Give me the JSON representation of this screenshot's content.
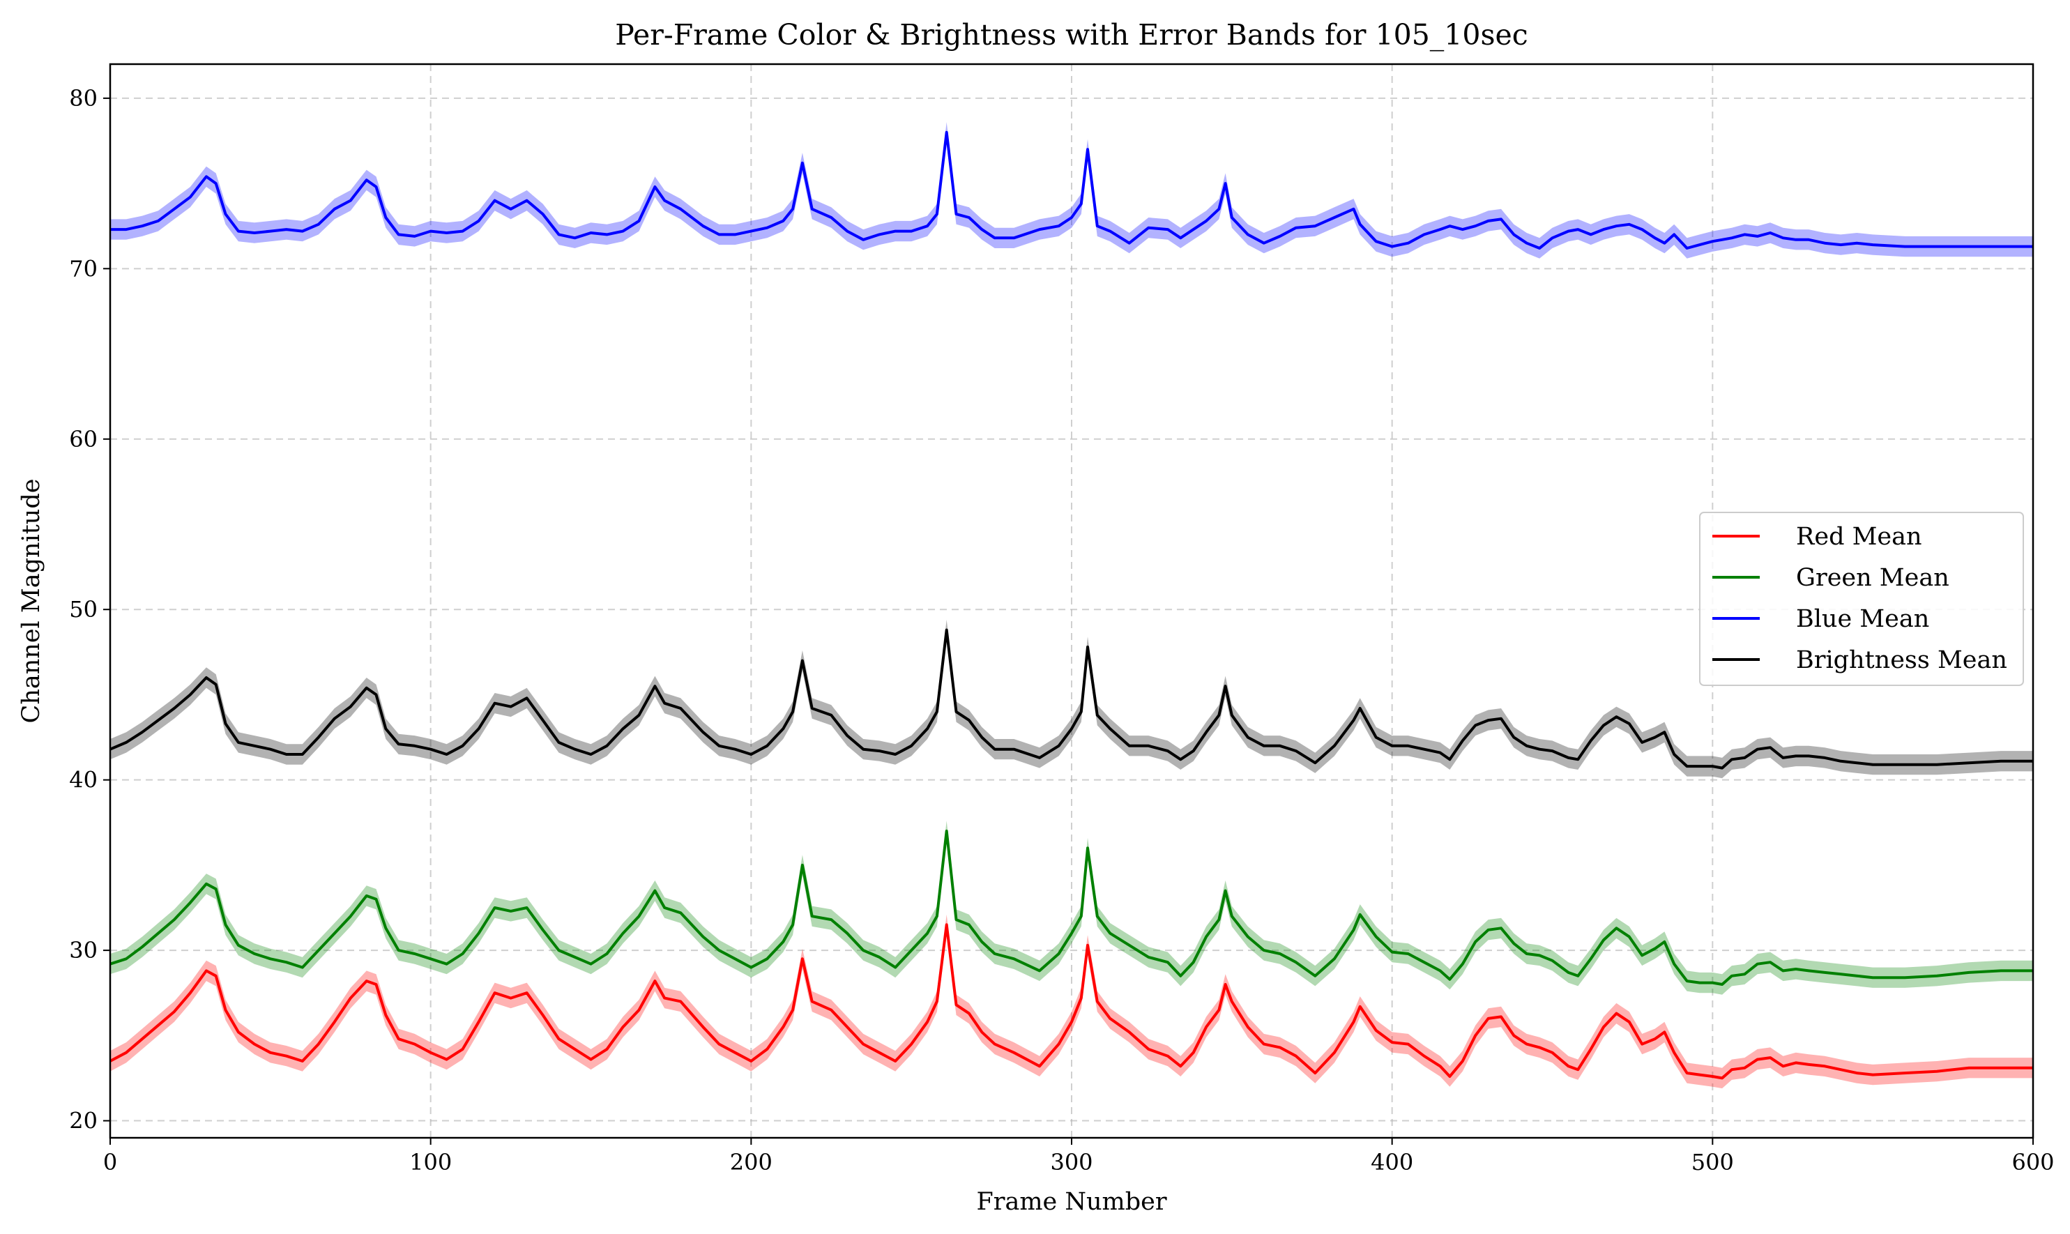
{
  "chart_data": {
    "type": "line",
    "title": "Per-Frame Color & Brightness with Error Bands for 105_10sec",
    "xlabel": "Frame Number",
    "ylabel": "Channel Magnitude",
    "xlim": [
      0,
      600
    ],
    "ylim": [
      19,
      82
    ],
    "xticks": [
      0,
      100,
      200,
      300,
      400,
      500,
      600
    ],
    "yticks": [
      20,
      30,
      40,
      50,
      60,
      70,
      80
    ],
    "grid": true,
    "legend_position": "center-right",
    "band_halfwidth": 0.6,
    "series": [
      {
        "name": "Red Mean",
        "color": "#ff0000",
        "x": [
          0,
          5,
          10,
          15,
          20,
          25,
          30,
          33,
          36,
          40,
          45,
          50,
          55,
          60,
          65,
          70,
          75,
          80,
          83,
          86,
          90,
          95,
          100,
          105,
          110,
          115,
          120,
          125,
          130,
          135,
          140,
          145,
          150,
          155,
          160,
          165,
          170,
          173,
          178,
          185,
          190,
          195,
          200,
          205,
          210,
          213,
          216,
          219,
          225,
          230,
          235,
          240,
          245,
          250,
          255,
          258,
          261,
          264,
          268,
          272,
          276,
          282,
          290,
          296,
          300,
          303,
          305,
          308,
          312,
          318,
          324,
          330,
          334,
          338,
          342,
          346,
          348,
          350,
          355,
          360,
          365,
          370,
          376,
          382,
          388,
          390,
          395,
          400,
          405,
          410,
          415,
          418,
          422,
          426,
          430,
          434,
          438,
          442,
          446,
          450,
          455,
          458,
          462,
          466,
          470,
          474,
          478,
          482,
          485,
          488,
          492,
          496,
          500,
          503,
          506,
          510,
          514,
          518,
          522,
          526,
          530,
          535,
          540,
          545,
          550,
          560,
          570,
          580,
          590,
          600
        ],
        "y": [
          23.5,
          24,
          24.8,
          25.6,
          26.4,
          27.5,
          28.8,
          28.5,
          26.5,
          25.2,
          24.5,
          24,
          23.8,
          23.5,
          24.5,
          25.8,
          27.2,
          28.2,
          28,
          26.2,
          24.8,
          24.5,
          24,
          23.6,
          24.2,
          25.8,
          27.5,
          27.2,
          27.5,
          26.2,
          24.8,
          24.2,
          23.6,
          24.2,
          25.5,
          26.5,
          28.2,
          27.2,
          27,
          25.5,
          24.5,
          24,
          23.5,
          24.2,
          25.5,
          26.5,
          29.5,
          27,
          26.5,
          25.5,
          24.5,
          24,
          23.5,
          24.5,
          25.8,
          27,
          31.5,
          26.8,
          26.3,
          25.2,
          24.5,
          24,
          23.2,
          24.5,
          25.8,
          27.2,
          30.3,
          27,
          26,
          25.2,
          24.2,
          23.8,
          23.2,
          24,
          25.5,
          26.5,
          28,
          27,
          25.5,
          24.5,
          24.3,
          23.8,
          22.8,
          24,
          25.8,
          26.7,
          25.3,
          24.6,
          24.5,
          23.8,
          23.2,
          22.6,
          23.5,
          25,
          26,
          26.1,
          25,
          24.5,
          24.3,
          24,
          23.2,
          23,
          24.2,
          25.5,
          26.3,
          25.8,
          24.5,
          24.8,
          25.2,
          24,
          22.8,
          22.7,
          22.6,
          22.5,
          23,
          23.1,
          23.6,
          23.7,
          23.2,
          23.4,
          23.3,
          23.2,
          23,
          22.8,
          22.7,
          22.8,
          22.9,
          23.1,
          23.1,
          23.1
        ]
      },
      {
        "name": "Green Mean",
        "color": "#008000",
        "x": [
          0,
          5,
          10,
          15,
          20,
          25,
          30,
          33,
          36,
          40,
          45,
          50,
          55,
          60,
          65,
          70,
          75,
          80,
          83,
          86,
          90,
          95,
          100,
          105,
          110,
          115,
          120,
          125,
          130,
          135,
          140,
          145,
          150,
          155,
          160,
          165,
          170,
          173,
          178,
          185,
          190,
          195,
          200,
          205,
          210,
          213,
          216,
          219,
          225,
          230,
          235,
          240,
          245,
          250,
          255,
          258,
          261,
          264,
          268,
          272,
          276,
          282,
          290,
          296,
          300,
          303,
          305,
          308,
          312,
          318,
          324,
          330,
          334,
          338,
          342,
          346,
          348,
          350,
          355,
          360,
          365,
          370,
          376,
          382,
          388,
          390,
          395,
          400,
          405,
          410,
          415,
          418,
          422,
          426,
          430,
          434,
          438,
          442,
          446,
          450,
          455,
          458,
          462,
          466,
          470,
          474,
          478,
          482,
          485,
          488,
          492,
          496,
          500,
          503,
          506,
          510,
          514,
          518,
          522,
          526,
          530,
          535,
          540,
          545,
          550,
          560,
          570,
          580,
          590,
          600
        ],
        "y": [
          29.2,
          29.5,
          30.2,
          31,
          31.8,
          32.8,
          33.9,
          33.6,
          31.5,
          30.3,
          29.8,
          29.5,
          29.3,
          29,
          30,
          31,
          32,
          33.2,
          33,
          31.3,
          30,
          29.8,
          29.5,
          29.2,
          29.8,
          31,
          32.5,
          32.3,
          32.5,
          31.2,
          30,
          29.6,
          29.2,
          29.8,
          31,
          32,
          33.5,
          32.5,
          32.2,
          30.8,
          30,
          29.5,
          29,
          29.5,
          30.5,
          31.5,
          35,
          32,
          31.8,
          31,
          30,
          29.6,
          29,
          30,
          31,
          32,
          37,
          31.8,
          31.5,
          30.5,
          29.8,
          29.5,
          28.8,
          29.8,
          31,
          32,
          36,
          32,
          31,
          30.3,
          29.6,
          29.3,
          28.5,
          29.3,
          30.8,
          31.8,
          33.5,
          32,
          30.8,
          30,
          29.8,
          29.3,
          28.5,
          29.5,
          31.2,
          32.1,
          30.8,
          29.9,
          29.8,
          29.3,
          28.8,
          28.3,
          29.2,
          30.5,
          31.2,
          31.3,
          30.4,
          29.8,
          29.7,
          29.4,
          28.7,
          28.5,
          29.5,
          30.6,
          31.3,
          30.8,
          29.7,
          30.1,
          30.5,
          29.2,
          28.2,
          28.1,
          28.1,
          28,
          28.5,
          28.6,
          29.2,
          29.3,
          28.8,
          28.9,
          28.8,
          28.7,
          28.6,
          28.5,
          28.4,
          28.4,
          28.5,
          28.7,
          28.8,
          28.8
        ]
      },
      {
        "name": "Blue Mean",
        "color": "#0000ff",
        "x": [
          0,
          5,
          10,
          15,
          20,
          25,
          30,
          33,
          36,
          40,
          45,
          50,
          55,
          60,
          65,
          70,
          75,
          80,
          83,
          86,
          90,
          95,
          100,
          105,
          110,
          115,
          120,
          125,
          130,
          135,
          140,
          145,
          150,
          155,
          160,
          165,
          170,
          173,
          178,
          185,
          190,
          195,
          200,
          205,
          210,
          213,
          216,
          219,
          225,
          230,
          235,
          240,
          245,
          250,
          255,
          258,
          261,
          264,
          268,
          272,
          276,
          282,
          290,
          296,
          300,
          303,
          305,
          308,
          312,
          318,
          324,
          330,
          334,
          338,
          342,
          346,
          348,
          350,
          355,
          360,
          365,
          370,
          376,
          382,
          388,
          390,
          395,
          400,
          405,
          410,
          415,
          418,
          422,
          426,
          430,
          434,
          438,
          442,
          446,
          450,
          455,
          458,
          462,
          466,
          470,
          474,
          478,
          482,
          485,
          488,
          492,
          496,
          500,
          503,
          506,
          510,
          514,
          518,
          522,
          526,
          530,
          535,
          540,
          545,
          550,
          560,
          570,
          580,
          590,
          600
        ],
        "y": [
          72.3,
          72.3,
          72.5,
          72.8,
          73.5,
          74.2,
          75.4,
          75,
          73.2,
          72.2,
          72.1,
          72.2,
          72.3,
          72.2,
          72.6,
          73.5,
          74,
          75.2,
          74.8,
          73,
          72,
          71.9,
          72.2,
          72.1,
          72.2,
          72.8,
          74,
          73.5,
          74,
          73.2,
          72,
          71.8,
          72.1,
          72,
          72.2,
          72.8,
          74.8,
          74,
          73.5,
          72.5,
          72,
          72,
          72.2,
          72.4,
          72.8,
          73.5,
          76.2,
          73.5,
          73,
          72.2,
          71.7,
          72,
          72.2,
          72.2,
          72.5,
          73.2,
          78,
          73.2,
          73,
          72.3,
          71.8,
          71.8,
          72.3,
          72.5,
          73,
          73.8,
          77,
          72.5,
          72.2,
          71.5,
          72.4,
          72.3,
          71.8,
          72.3,
          72.8,
          73.5,
          75,
          73,
          72,
          71.5,
          71.9,
          72.4,
          72.5,
          73,
          73.5,
          72.6,
          71.6,
          71.3,
          71.5,
          72,
          72.3,
          72.5,
          72.3,
          72.5,
          72.8,
          72.9,
          72,
          71.5,
          71.2,
          71.8,
          72.2,
          72.3,
          72,
          72.3,
          72.5,
          72.6,
          72.3,
          71.8,
          71.5,
          72,
          71.2,
          71.4,
          71.6,
          71.7,
          71.8,
          72,
          71.9,
          72.1,
          71.8,
          71.7,
          71.7,
          71.5,
          71.4,
          71.5,
          71.4,
          71.3,
          71.3,
          71.3,
          71.3,
          71.3
        ]
      },
      {
        "name": "Brightness Mean",
        "color": "#000000",
        "x": [
          0,
          5,
          10,
          15,
          20,
          25,
          30,
          33,
          36,
          40,
          45,
          50,
          55,
          60,
          65,
          70,
          75,
          80,
          83,
          86,
          90,
          95,
          100,
          105,
          110,
          115,
          120,
          125,
          130,
          135,
          140,
          145,
          150,
          155,
          160,
          165,
          170,
          173,
          178,
          185,
          190,
          195,
          200,
          205,
          210,
          213,
          216,
          219,
          225,
          230,
          235,
          240,
          245,
          250,
          255,
          258,
          261,
          264,
          268,
          272,
          276,
          282,
          290,
          296,
          300,
          303,
          305,
          308,
          312,
          318,
          324,
          330,
          334,
          338,
          342,
          346,
          348,
          350,
          355,
          360,
          365,
          370,
          376,
          382,
          388,
          390,
          395,
          400,
          405,
          410,
          415,
          418,
          422,
          426,
          430,
          434,
          438,
          442,
          446,
          450,
          455,
          458,
          462,
          466,
          470,
          474,
          478,
          482,
          485,
          488,
          492,
          496,
          500,
          503,
          506,
          510,
          514,
          518,
          522,
          526,
          530,
          535,
          540,
          545,
          550,
          560,
          570,
          580,
          590,
          600
        ],
        "y": [
          41.8,
          42.2,
          42.8,
          43.5,
          44.2,
          45,
          46,
          45.6,
          43.3,
          42.2,
          42,
          41.8,
          41.5,
          41.5,
          42.5,
          43.6,
          44.3,
          45.4,
          45,
          43,
          42.1,
          42,
          41.8,
          41.5,
          42,
          43,
          44.5,
          44.3,
          44.8,
          43.5,
          42.2,
          41.8,
          41.5,
          42,
          43,
          43.8,
          45.5,
          44.5,
          44.2,
          42.8,
          42,
          41.8,
          41.5,
          42,
          43,
          44,
          47,
          44.2,
          43.8,
          42.6,
          41.8,
          41.7,
          41.5,
          42,
          43,
          44,
          48.8,
          44,
          43.5,
          42.5,
          41.8,
          41.8,
          41.3,
          42,
          43,
          44,
          47.8,
          43.8,
          43,
          42,
          42,
          41.7,
          41.2,
          41.7,
          42.8,
          43.8,
          45.5,
          43.8,
          42.5,
          42,
          42,
          41.7,
          41,
          42,
          43.5,
          44.2,
          42.5,
          42,
          42,
          41.8,
          41.6,
          41.2,
          42.3,
          43.2,
          43.5,
          43.6,
          42.5,
          42,
          41.8,
          41.7,
          41.3,
          41.2,
          42.3,
          43.2,
          43.7,
          43.3,
          42.2,
          42.5,
          42.8,
          41.5,
          40.8,
          40.8,
          40.8,
          40.7,
          41.2,
          41.3,
          41.8,
          41.9,
          41.3,
          41.4,
          41.4,
          41.3,
          41.1,
          41,
          40.9,
          40.9,
          40.9,
          41,
          41.1,
          41.1
        ]
      }
    ]
  }
}
